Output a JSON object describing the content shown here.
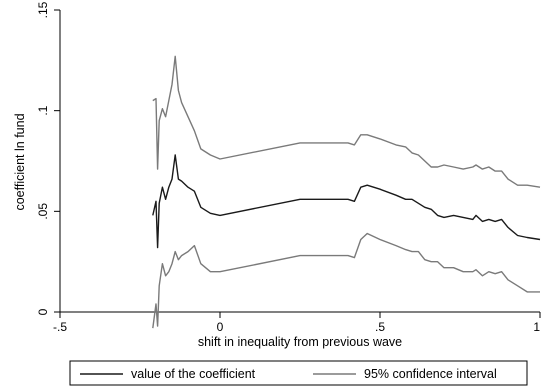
{
  "chart_data": {
    "type": "line",
    "title": "",
    "xlabel": "shift in inequality from previous wave",
    "ylabel": "coefficient ln fund",
    "xlim": [
      -0.5,
      1.0
    ],
    "ylim": [
      0,
      0.15
    ],
    "xticks": [
      -0.5,
      0,
      0.5,
      1
    ],
    "xtick_labels": [
      "-.5",
      "0",
      ".5",
      "1"
    ],
    "yticks": [
      0,
      0.05,
      0.1,
      0.15
    ],
    "ytick_labels": [
      "0",
      ".05",
      ".1",
      ".15"
    ],
    "grid": false,
    "legend_position": "bottom",
    "series": [
      {
        "name": "value of the coefficient",
        "color": "#1a1a1a",
        "x": [
          -0.21,
          -0.2,
          -0.195,
          -0.19,
          -0.18,
          -0.17,
          -0.16,
          -0.15,
          -0.14,
          -0.13,
          -0.12,
          -0.1,
          -0.08,
          -0.06,
          -0.03,
          0.0,
          0.25,
          0.4,
          0.42,
          0.44,
          0.46,
          0.5,
          0.55,
          0.58,
          0.6,
          0.62,
          0.64,
          0.66,
          0.68,
          0.7,
          0.73,
          0.76,
          0.79,
          0.8,
          0.82,
          0.84,
          0.86,
          0.88,
          0.9,
          0.93,
          0.96,
          1.0
        ],
        "y": [
          0.048,
          0.055,
          0.032,
          0.054,
          0.062,
          0.056,
          0.062,
          0.066,
          0.078,
          0.066,
          0.065,
          0.062,
          0.06,
          0.052,
          0.049,
          0.048,
          0.056,
          0.056,
          0.055,
          0.062,
          0.063,
          0.061,
          0.058,
          0.056,
          0.056,
          0.054,
          0.052,
          0.051,
          0.048,
          0.047,
          0.048,
          0.047,
          0.046,
          0.048,
          0.045,
          0.046,
          0.045,
          0.046,
          0.042,
          0.038,
          0.037,
          0.036
        ]
      },
      {
        "name": "95% confidence interval",
        "color": "#7a7a7a",
        "x": [
          -0.21,
          -0.2,
          -0.195,
          -0.19,
          -0.18,
          -0.17,
          -0.16,
          -0.15,
          -0.14,
          -0.13,
          -0.12,
          -0.1,
          -0.08,
          -0.06,
          -0.03,
          0.0,
          0.25,
          0.4,
          0.42,
          0.44,
          0.46,
          0.5,
          0.55,
          0.58,
          0.6,
          0.62,
          0.64,
          0.66,
          0.68,
          0.7,
          0.73,
          0.76,
          0.79,
          0.8,
          0.82,
          0.84,
          0.86,
          0.88,
          0.9,
          0.93,
          0.96,
          1.0
        ],
        "y": [
          0.105,
          0.106,
          0.071,
          0.095,
          0.101,
          0.097,
          0.105,
          0.113,
          0.127,
          0.11,
          0.104,
          0.097,
          0.09,
          0.081,
          0.078,
          0.076,
          0.084,
          0.084,
          0.083,
          0.088,
          0.088,
          0.086,
          0.083,
          0.082,
          0.079,
          0.078,
          0.075,
          0.072,
          0.072,
          0.073,
          0.072,
          0.071,
          0.072,
          0.073,
          0.071,
          0.072,
          0.07,
          0.07,
          0.066,
          0.063,
          0.063,
          0.062
        ]
      },
      {
        "name": "95% confidence interval",
        "color": "#7a7a7a",
        "x": [
          -0.21,
          -0.2,
          -0.195,
          -0.19,
          -0.18,
          -0.17,
          -0.16,
          -0.15,
          -0.14,
          -0.13,
          -0.12,
          -0.1,
          -0.08,
          -0.06,
          -0.03,
          0.0,
          0.25,
          0.4,
          0.42,
          0.44,
          0.46,
          0.5,
          0.55,
          0.58,
          0.6,
          0.62,
          0.64,
          0.66,
          0.68,
          0.7,
          0.73,
          0.76,
          0.79,
          0.8,
          0.82,
          0.84,
          0.86,
          0.88,
          0.9,
          0.93,
          0.96,
          1.0
        ],
        "y": [
          -0.008,
          0.004,
          -0.007,
          0.013,
          0.024,
          0.018,
          0.02,
          0.024,
          0.03,
          0.026,
          0.028,
          0.03,
          0.033,
          0.024,
          0.02,
          0.02,
          0.028,
          0.028,
          0.027,
          0.036,
          0.039,
          0.036,
          0.033,
          0.031,
          0.03,
          0.03,
          0.026,
          0.025,
          0.025,
          0.022,
          0.022,
          0.02,
          0.02,
          0.021,
          0.018,
          0.02,
          0.019,
          0.02,
          0.016,
          0.013,
          0.01,
          0.01
        ]
      }
    ],
    "legend": [
      {
        "label": "value of the coefficient",
        "color": "#1a1a1a"
      },
      {
        "label": "95% confidence interval",
        "color": "#7a7a7a"
      }
    ]
  }
}
